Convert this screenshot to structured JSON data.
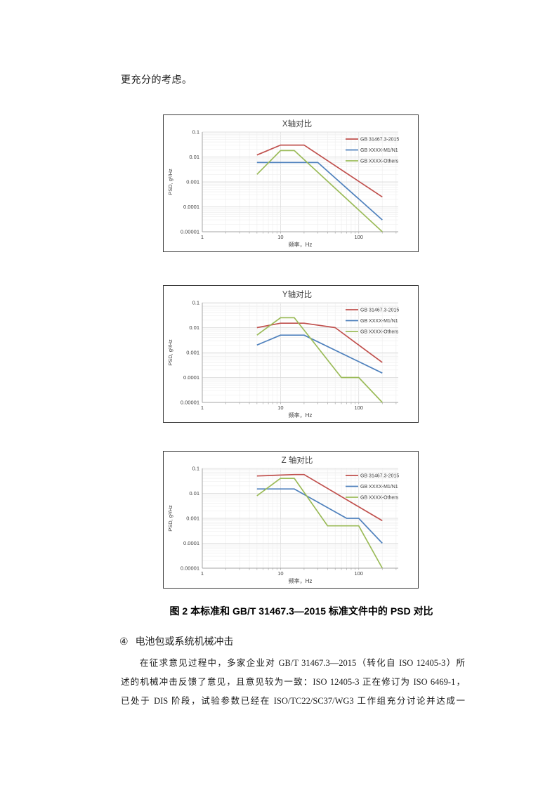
{
  "page": {
    "intro_text": "更充分的考虑。",
    "figure_caption": "图 2  本标准和 GB/T 31467.3—2015 标准文件中的 PSD 对比",
    "item": {
      "marker": "④",
      "title": "电池包或系统机械冲击"
    },
    "paragraph_lines": [
      "在征求意见过程中，多家企业对 GB/T 31467.3—2015（转化自 ISO 12405-3）所",
      "述的机械冲击反馈了意见，且意见较为一致：ISO 12405-3 正在修订为 ISO 6469-1，",
      "已处于 DIS 阶段，试验参数已经在 ISO/TC22/SC37/WG3 工作组充分讨论并达成一"
    ]
  },
  "chart_style": {
    "grid_major": "#D9D9D9",
    "grid_minor": "#EFEFEF",
    "axis_color": "#A6A6A6",
    "text_color": "#404040"
  },
  "chart_data": [
    {
      "type": "line",
      "title": "X轴对比",
      "xlabel": "频率，Hz",
      "ylabel": "PSD, g²/Hz",
      "x_scale": "log",
      "y_scale": "log",
      "xlim": [
        1,
        320
      ],
      "ylim": [
        1e-05,
        0.1
      ],
      "x_ticks": [
        1,
        10,
        100
      ],
      "y_ticks": [
        0.1,
        0.01,
        0.001,
        0.0001,
        1e-05
      ],
      "grid": true,
      "legend_position": "top-right",
      "series": [
        {
          "name": "GB 31467.3-2015",
          "color": "#C0504D",
          "points": [
            [
              5,
              0.012
            ],
            [
              10,
              0.03
            ],
            [
              20,
              0.03
            ],
            [
              200,
              0.00025
            ]
          ]
        },
        {
          "name": "GB XXXX-M1/N1",
          "color": "#4F81BD",
          "points": [
            [
              5,
              0.006
            ],
            [
              30,
              0.006
            ],
            [
              200,
              3e-05
            ]
          ]
        },
        {
          "name": "GB XXXX-Others",
          "color": "#9BBB59",
          "points": [
            [
              5,
              0.002
            ],
            [
              10,
              0.018
            ],
            [
              15,
              0.018
            ],
            [
              200,
              1e-05
            ]
          ]
        }
      ]
    },
    {
      "type": "line",
      "title": "Y轴对比",
      "xlabel": "频率，Hz",
      "ylabel": "PSD, g²/Hz",
      "x_scale": "log",
      "y_scale": "log",
      "xlim": [
        1,
        320
      ],
      "ylim": [
        1e-05,
        0.1
      ],
      "x_ticks": [
        1,
        10,
        100
      ],
      "y_ticks": [
        0.1,
        0.01,
        0.001,
        0.0001,
        1e-05
      ],
      "grid": true,
      "legend_position": "top-right",
      "series": [
        {
          "name": "GB 31467.3-2015",
          "color": "#C0504D",
          "points": [
            [
              5,
              0.01
            ],
            [
              10,
              0.015
            ],
            [
              20,
              0.015
            ],
            [
              50,
              0.01
            ],
            [
              200,
              0.0004
            ]
          ]
        },
        {
          "name": "GB XXXX-M1/N1",
          "color": "#4F81BD",
          "points": [
            [
              5,
              0.002
            ],
            [
              10,
              0.005
            ],
            [
              20,
              0.005
            ],
            [
              200,
              0.00015
            ]
          ]
        },
        {
          "name": "GB XXXX-Others",
          "color": "#9BBB59",
          "points": [
            [
              5,
              0.005
            ],
            [
              10,
              0.025
            ],
            [
              15,
              0.025
            ],
            [
              60,
              0.0001
            ],
            [
              100,
              0.0001
            ],
            [
              200,
              1e-05
            ]
          ]
        }
      ]
    },
    {
      "type": "line",
      "title": "Z 轴对比",
      "xlabel": "频率，Hz",
      "ylabel": "PSD, g²/Hz",
      "x_scale": "log",
      "y_scale": "log",
      "xlim": [
        1,
        320
      ],
      "ylim": [
        1e-05,
        0.1
      ],
      "x_ticks": [
        1,
        10,
        100
      ],
      "y_ticks": [
        0.1,
        0.01,
        0.001,
        0.0001,
        1e-05
      ],
      "grid": true,
      "legend_position": "top-right",
      "series": [
        {
          "name": "GB 31467.3-2015",
          "color": "#C0504D",
          "points": [
            [
              5,
              0.05
            ],
            [
              15,
              0.057
            ],
            [
              20,
              0.057
            ],
            [
              200,
              0.0008
            ]
          ]
        },
        {
          "name": "GB XXXX-M1/N1",
          "color": "#4F81BD",
          "points": [
            [
              5,
              0.015
            ],
            [
              15,
              0.015
            ],
            [
              70,
              0.001
            ],
            [
              100,
              0.001
            ],
            [
              200,
              0.0001
            ]
          ]
        },
        {
          "name": "GB XXXX-Others",
          "color": "#9BBB59",
          "points": [
            [
              5,
              0.008
            ],
            [
              10,
              0.04
            ],
            [
              15,
              0.04
            ],
            [
              40,
              0.0005
            ],
            [
              100,
              0.0005
            ],
            [
              200,
              1e-05
            ]
          ]
        }
      ]
    }
  ]
}
